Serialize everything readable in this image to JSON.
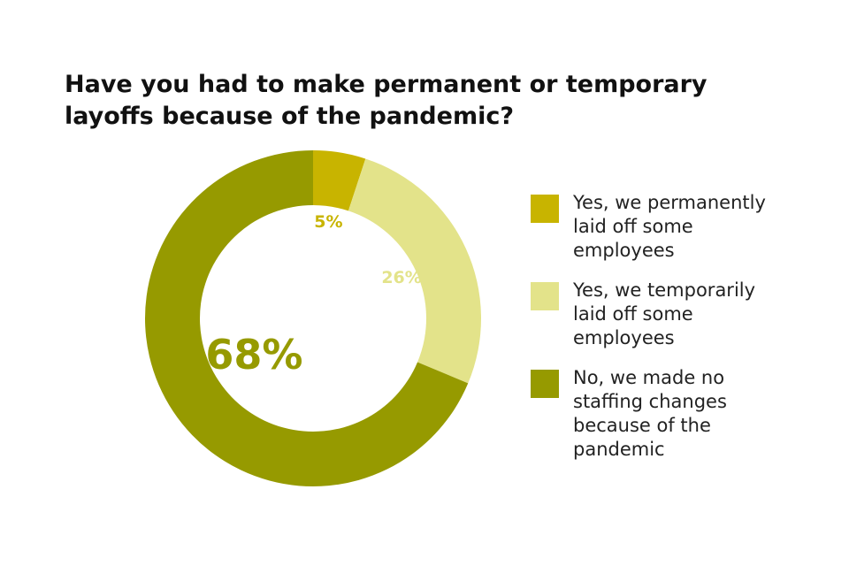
{
  "chart_data": {
    "type": "donut",
    "title": "Have you had to make permanent or temporary layoffs because of the pandemic?",
    "categories": [
      "Yes, we permanently laid off some employees",
      "Yes, we temporarily laid off some employees",
      "No, we made no staffing changes because of the pandemic"
    ],
    "values": [
      5,
      26,
      68
    ],
    "value_labels": [
      "5%",
      "26%",
      "68%"
    ],
    "colors": [
      "#c8b400",
      "#e3e38a",
      "#969a00"
    ]
  }
}
